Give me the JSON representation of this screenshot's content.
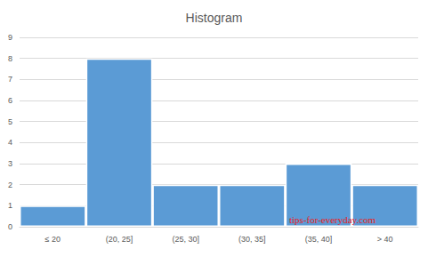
{
  "chart_data": {
    "type": "bar",
    "title": "Histogram",
    "categories": [
      "≤ 20",
      "(20, 25]",
      "(25, 30]",
      "(30, 35]",
      "(35, 40]",
      "> 40"
    ],
    "values": [
      1,
      8,
      2,
      2,
      3,
      2
    ],
    "color": "#5b9bd5",
    "ylim": [
      0,
      9
    ],
    "yticks": [
      0,
      1,
      2,
      3,
      4,
      5,
      6,
      7,
      8,
      9
    ],
    "grid": true,
    "annotation": "tips-for-everyday.com"
  }
}
